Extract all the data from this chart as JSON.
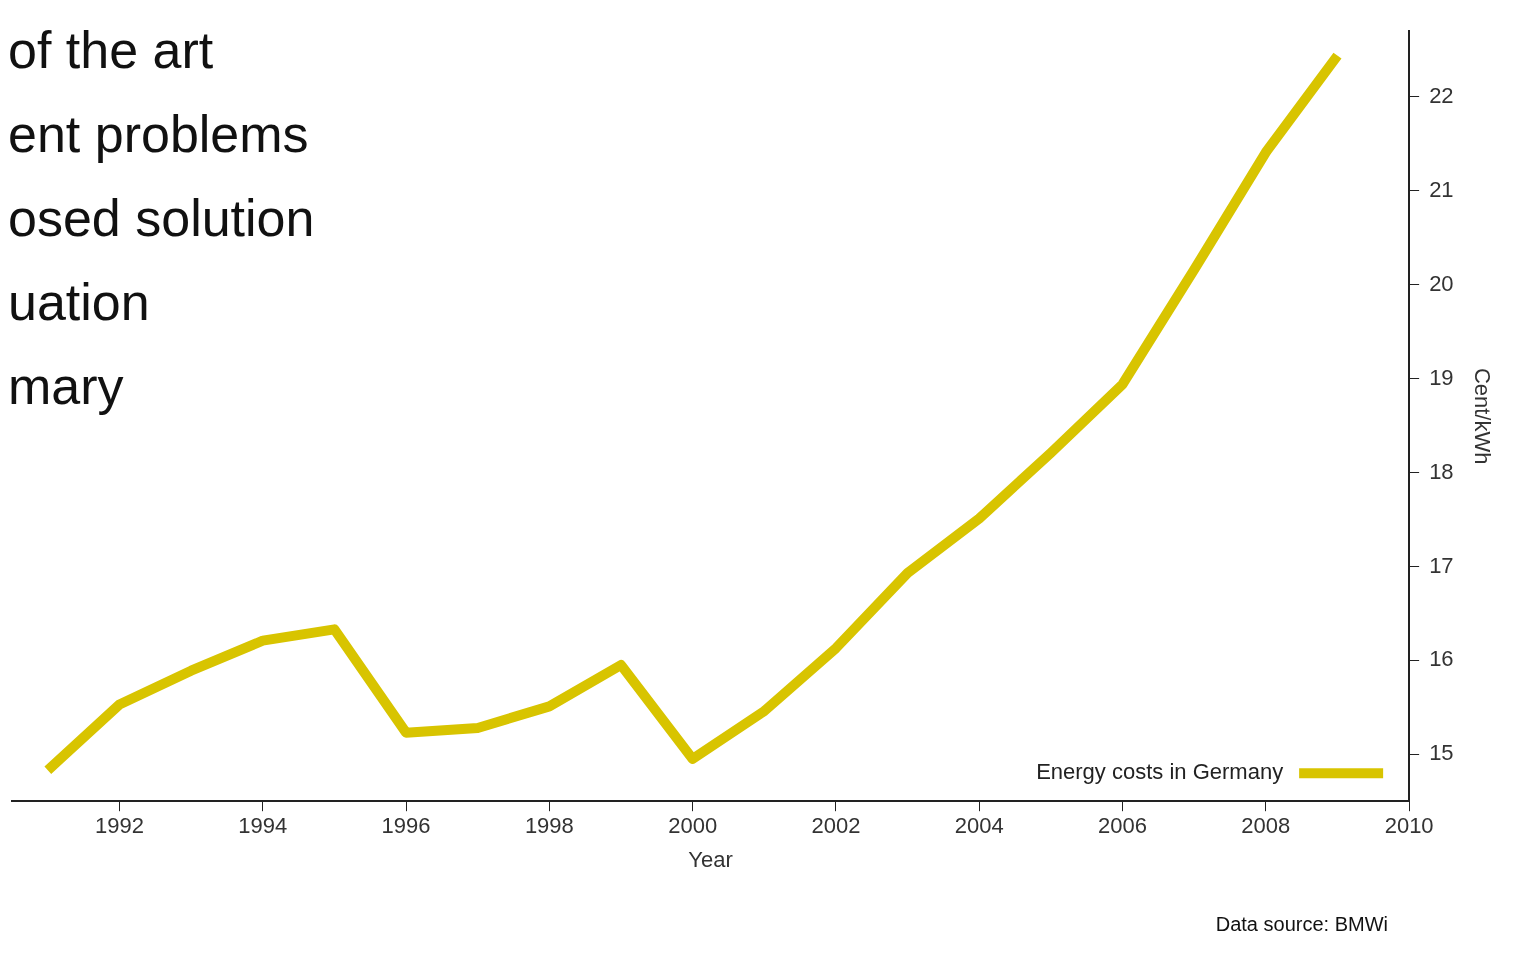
{
  "chart_data": {
    "type": "line",
    "xlabel": "Year",
    "ylabel": "Cent/kWh",
    "x": [
      1991,
      1992,
      1993,
      1994,
      1995,
      1996,
      1997,
      1998,
      1999,
      2000,
      2001,
      2002,
      2003,
      2004,
      2005,
      2006,
      2007,
      2008,
      2009
    ],
    "series": [
      {
        "name": "Energy costs in Germany",
        "color": "#d8c400",
        "values": [
          14.83,
          15.53,
          15.89,
          16.21,
          16.33,
          15.23,
          15.28,
          15.51,
          15.95,
          14.95,
          15.46,
          16.13,
          16.93,
          17.51,
          18.21,
          18.94,
          20.16,
          21.41,
          22.44
        ]
      }
    ],
    "xlim": [
      1990.5,
      2010
    ],
    "xticks": [
      1992,
      1994,
      1996,
      1998,
      2000,
      2002,
      2004,
      2006,
      2008,
      2010
    ],
    "ylim": [
      14.5,
      22.7
    ],
    "yticks": [
      15,
      16,
      17,
      18,
      19,
      20,
      21,
      22
    ],
    "grid": false,
    "legend": "bottom right",
    "marker": "none",
    "line_style": "solid",
    "annotations": [
      "of the art",
      "ent problems",
      "osed solution",
      "uation",
      "mary",
      "Data source: BMWi"
    ]
  }
}
